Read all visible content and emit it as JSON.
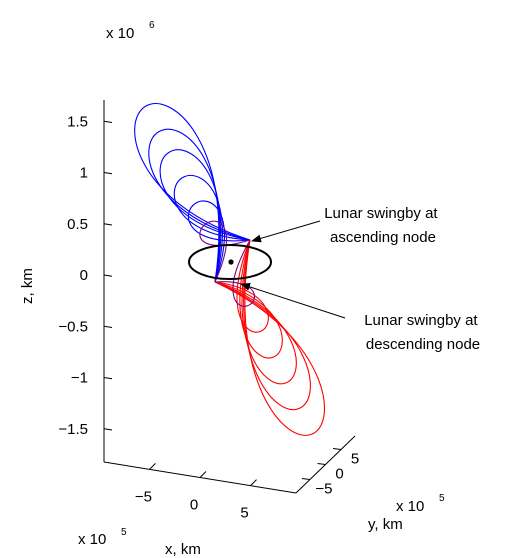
{
  "chart_data": {
    "type": "line",
    "projection": "3d",
    "zlabel": "z, km",
    "xlabel": "x, km",
    "ylabel": "y, km",
    "z_multiplier": "x 10",
    "z_multiplier_exp": "6",
    "x_multiplier": "x 10",
    "x_multiplier_exp": "5",
    "y_multiplier": "x 10",
    "y_multiplier_exp": "5",
    "z_ticks": [
      {
        "value": 1.5,
        "label": "1.5"
      },
      {
        "value": 1,
        "label": "1"
      },
      {
        "value": 0.5,
        "label": "0.5"
      },
      {
        "value": 0,
        "label": "0"
      },
      {
        "value": -0.5,
        "label": "−0.5"
      },
      {
        "value": -1,
        "label": "−1"
      },
      {
        "value": -1.5,
        "label": "−1.5"
      }
    ],
    "x_ticks": [
      {
        "value": -5,
        "label": "−5"
      },
      {
        "value": 0,
        "label": "0"
      },
      {
        "value": 5,
        "label": "5"
      }
    ],
    "y_ticks": [
      {
        "value": -5,
        "label": "−5"
      },
      {
        "value": 0,
        "label": "0"
      },
      {
        "value": 5,
        "label": "5"
      }
    ],
    "zlim": [
      -1.8,
      1.8
    ],
    "grid": false,
    "series": [
      {
        "color": "#0000ff",
        "kind": "loop",
        "z_top": 1.65
      },
      {
        "color": "#0000ff",
        "kind": "loop",
        "z_top": 1.4
      },
      {
        "color": "#0000ff",
        "kind": "loop",
        "z_top": 1.2
      },
      {
        "color": "#0000ff",
        "kind": "loop",
        "z_top": 0.95
      },
      {
        "color": "#0000ff",
        "kind": "loop",
        "z_top": 0.7
      },
      {
        "color": "#ff0000",
        "kind": "loop",
        "z_bottom": -1.55
      },
      {
        "color": "#ff0000",
        "kind": "loop",
        "z_bottom": -1.3
      },
      {
        "color": "#ff0000",
        "kind": "loop",
        "z_bottom": -1.05
      },
      {
        "color": "#ff0000",
        "kind": "loop",
        "z_bottom": -0.8
      },
      {
        "color": "#ff0000",
        "kind": "loop",
        "z_bottom": -0.55
      },
      {
        "color": "#800080",
        "kind": "loop",
        "z_top": 0.5,
        "z_bottom": -0.3
      },
      {
        "color": "#000000",
        "kind": "lunar-orbit"
      }
    ],
    "annotations": [
      {
        "id": "ascending",
        "lines": [
          "Lunar swingby at",
          "ascending node"
        ]
      },
      {
        "id": "descending",
        "lines": [
          "Lunar swingby at",
          "descending node"
        ]
      }
    ],
    "earth_marker_color": "#000000"
  }
}
